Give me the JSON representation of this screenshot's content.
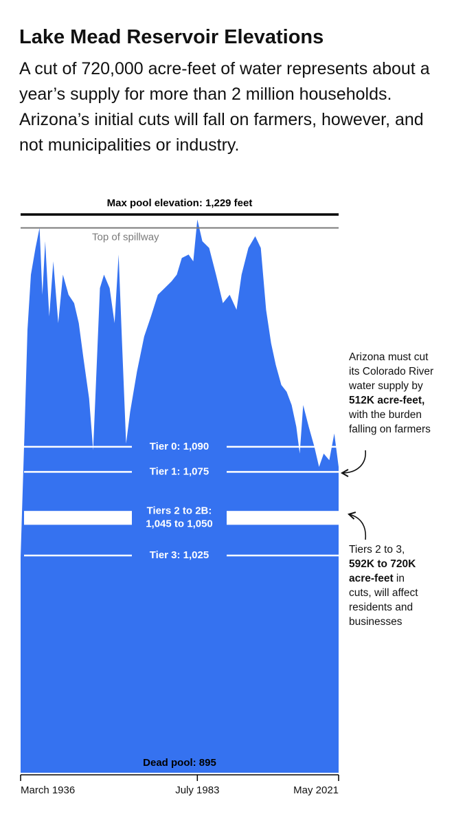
{
  "chart_data": {
    "type": "area",
    "title": "Lake Mead Reservoir Elevations",
    "subtitle": "A cut of 720,000 acre-feet of water represents about a year’s supply for more than 2 million households. Arizona’s initial cuts will fall on farmers, however, and not municipalities or industry.",
    "color": "#3572f0",
    "x": [
      "1936-03",
      "1937-04",
      "1938-01",
      "1938-12",
      "1940-03",
      "1941-04",
      "1942-01",
      "1942-10",
      "1943-11",
      "1944-12",
      "1946-04",
      "1947-07",
      "1949-01",
      "1950-07",
      "1951-10",
      "1953-01",
      "1954-07",
      "1955-08",
      "1956-05",
      "1957-06",
      "1958-07",
      "1960-01",
      "1961-05",
      "1962-06",
      "1963-05",
      "1964-06",
      "1965-07",
      "1967-05",
      "1969-04",
      "1971-02",
      "1972-12",
      "1974-10",
      "1976-08",
      "1978-01",
      "1979-05",
      "1981-03",
      "1982-06",
      "1983-07",
      "1984-11",
      "1986-09",
      "1988-07",
      "1990-05",
      "1992-03",
      "1994-01",
      "1995-05",
      "1997-03",
      "1999-01",
      "2000-07",
      "2001-12",
      "2003-04",
      "2004-07",
      "2006-01",
      "2007-06",
      "2008-10",
      "2010-01",
      "2010-12",
      "2011-11",
      "2013-05",
      "2014-11",
      "2016-02",
      "2017-05",
      "2018-11",
      "2020-03",
      "2021-05"
    ],
    "values": [
      1024,
      1102,
      1160,
      1193,
      1209,
      1221,
      1181,
      1213,
      1168,
      1201,
      1164,
      1193,
      1181,
      1176,
      1164,
      1143,
      1119,
      1088,
      1127,
      1185,
      1193,
      1185,
      1164,
      1205,
      1152,
      1092,
      1111,
      1135,
      1156,
      1168,
      1181,
      1185,
      1189,
      1193,
      1203,
      1205,
      1201,
      1226,
      1213,
      1209,
      1193,
      1176,
      1181,
      1172,
      1193,
      1209,
      1216,
      1209,
      1172,
      1152,
      1139,
      1127,
      1123,
      1115,
      1102,
      1086,
      1115,
      1102,
      1090,
      1078,
      1086,
      1082,
      1098,
      1078
    ],
    "xlim": [
      "1936-03",
      "2021-05"
    ],
    "ylim": [
      895,
      1229
    ],
    "xticks": [
      {
        "value": "1936-03",
        "label": "March 1936"
      },
      {
        "value": "1983-07",
        "label": "July 1983"
      },
      {
        "value": "2021-05",
        "label": "May 2021"
      }
    ],
    "bounds": [
      {
        "label": "Max pool elevation: 1,229 feet",
        "value": 1229,
        "color": "#000000"
      },
      {
        "label": "Top of spillway",
        "value": 1221,
        "color": "#7a7a7a"
      },
      {
        "label": "Dead pool: 895",
        "value": 895,
        "color": "#000000"
      }
    ],
    "tiers": [
      {
        "lines": [
          "Tier 0: 1,090"
        ],
        "values": [
          1090
        ]
      },
      {
        "lines": [
          "Tier 1: 1,075"
        ],
        "values": [
          1075
        ]
      },
      {
        "lines": [
          "Tiers 2 to 2B:",
          "1,045 to 1,050"
        ],
        "values": [
          1045,
          1050
        ]
      },
      {
        "lines": [
          "Tier 3: 1,025"
        ],
        "values": [
          1025
        ]
      }
    ],
    "annotations": [
      {
        "lines": [
          [
            {
              "text": "Arizona must cut"
            }
          ],
          [
            {
              "text": "its Colorado River"
            }
          ],
          [
            {
              "text": "water supply by"
            }
          ],
          [
            {
              "text": "512K acre-feet,",
              "bold": true
            }
          ],
          [
            {
              "text": "with the burden"
            }
          ],
          [
            {
              "text": "falling on farmers"
            }
          ]
        ]
      },
      {
        "lines": [
          [
            {
              "text": "Tiers 2 to 3,"
            }
          ],
          [
            {
              "text": "592K to 720K",
              "bold": true
            }
          ],
          [
            {
              "text": "acre-feet",
              "bold": true
            },
            {
              "text": " in"
            }
          ],
          [
            {
              "text": "cuts, will affect"
            }
          ],
          [
            {
              "text": "residents and"
            }
          ],
          [
            {
              "text": "businesses"
            }
          ]
        ]
      }
    ]
  }
}
